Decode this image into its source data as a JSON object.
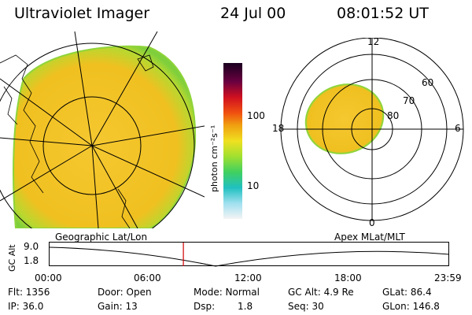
{
  "header": {
    "instrument": "Ultraviolet Imager",
    "date": "24 Jul 00",
    "time": "08:01:52 UT"
  },
  "colorbar": {
    "unit_label": "photon cm⁻²s⁻¹",
    "ticks": [
      "100",
      "10"
    ]
  },
  "polar_plot": {
    "mlt_labels": [
      "12",
      "18",
      "6",
      "0"
    ],
    "lat_labels": [
      "60",
      "70",
      "80"
    ]
  },
  "timeline": {
    "left_caption": "Geographic Lat/Lon",
    "right_caption": "Apex MLat/MLT",
    "axis_label": "GC Alt",
    "y_values": [
      "9.0",
      "1.8"
    ],
    "time_ticks": [
      "00:00",
      "06:00",
      "12:00",
      "18:00",
      "23:59"
    ],
    "marker_time": "08:01:52"
  },
  "status": {
    "flt": "Flt: 1356",
    "ip": "IP: 36.0",
    "door": "Door: Open",
    "gain": "Gain: 13",
    "mode": "Mode: Normal",
    "dsp": "Dsp:",
    "dsp_value": "1.8",
    "gc_alt": "GC Alt: 4.9 Re",
    "seq": "Seq: 30",
    "glat": "GLat: 86.4",
    "glon": "GLon: 146.8"
  },
  "colors": {
    "auroral_fill": "#f2c41f",
    "auroral_edge": "#8fd43a",
    "marker": "#d00000"
  }
}
